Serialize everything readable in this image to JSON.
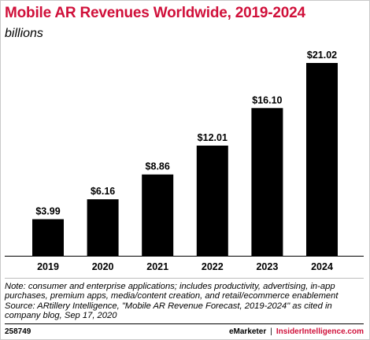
{
  "chart_data": {
    "type": "bar",
    "title": "Mobile AR Revenues Worldwide, 2019-2024",
    "subtitle": "billions",
    "categories": [
      "2019",
      "2020",
      "2021",
      "2022",
      "2023",
      "2024"
    ],
    "values": [
      3.99,
      6.16,
      8.86,
      12.01,
      16.1,
      21.02
    ],
    "data_labels": [
      "$3.99",
      "$6.16",
      "$8.86",
      "$12.01",
      "$16.10",
      "$21.02"
    ],
    "xlabel": "",
    "ylabel": "",
    "ylim": [
      0,
      21.02
    ],
    "grid": false,
    "bar_color": "#000000",
    "title_color": "#d0103a"
  },
  "note_lines": [
    "Note: consumer and enterprise applications; includes productivity, advertising, in-app",
    "purchases, premium apps, media/content creation, and retail/ecommerce enablement",
    "Source: ARtillery Intelligence, \"Mobile AR Revenue Forecast, 2019-2024\" as cited in",
    "company blog, Sep 17, 2020"
  ],
  "chart_id": "258749",
  "brand": {
    "emarketer": "eMarketer",
    "separator": "|",
    "insider": "InsiderIntelligence.com",
    "accent": "#d0103a"
  }
}
